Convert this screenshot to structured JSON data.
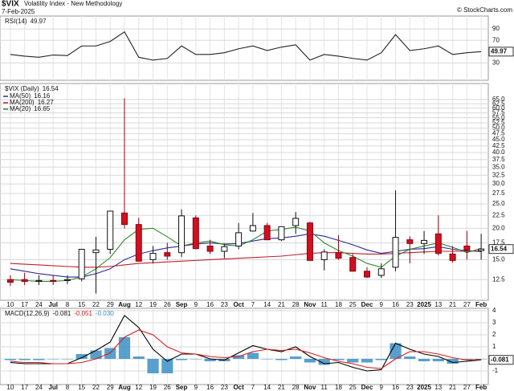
{
  "header": {
    "symbol": "$VIX",
    "title": "Volatility Index - New Methodology",
    "date": "7-Feb-2025",
    "source": "© StockCharts.com"
  },
  "chart_data": [
    {
      "type": "line",
      "name": "RSI(14)",
      "ylim": [
        5,
        110
      ],
      "yticks": [
        30,
        70,
        90
      ],
      "grid": true,
      "series": [
        {
          "name": "RSI(14)",
          "color": "#222222",
          "values": [
            45,
            42,
            40,
            44,
            43,
            60,
            60,
            68,
            85,
            40,
            35,
            38,
            60,
            45,
            45,
            48,
            55,
            60,
            52,
            58,
            62,
            35,
            45,
            42,
            38,
            35,
            48,
            80,
            52,
            55,
            60,
            45,
            48,
            49.97
          ]
        }
      ]
    },
    {
      "type": "candlestick",
      "name": "$VIX (Daily)",
      "log_scale": true,
      "grid": true,
      "up_color": "#ffffff",
      "down_color": "#d01020",
      "categories": [
        "10",
        "17",
        "24",
        "Jul",
        "8",
        "15",
        "22",
        "29",
        "Aug",
        "12",
        "19",
        "26",
        "Sep",
        "9",
        "16",
        "23",
        "Oct",
        "7",
        "14",
        "21",
        "28",
        "Nov",
        "11",
        "18",
        "25",
        "Dec",
        "9",
        "16",
        "23",
        "2025",
        "13",
        "21",
        "27",
        "Feb"
      ],
      "open": [
        12.5,
        12.5,
        12.3,
        12.4,
        12.4,
        12.6,
        16,
        16.5,
        23,
        20.7,
        15,
        16,
        16,
        22,
        17,
        16.2,
        17,
        19.5,
        20.5,
        18,
        20.5,
        21,
        15,
        16,
        15.3,
        13.5,
        13,
        14,
        18,
        17.4,
        19,
        15.8,
        17,
        16.3
      ],
      "high": [
        13,
        13.3,
        13,
        13,
        13,
        16.5,
        18.5,
        23.4,
        65.7,
        22,
        17,
        17.5,
        23.8,
        22.5,
        18,
        17.4,
        21,
        23,
        21,
        20.3,
        23.2,
        21.2,
        16.5,
        18.8,
        15.8,
        14,
        14.5,
        28.3,
        18.6,
        19.5,
        22.5,
        17,
        19.5,
        19
      ],
      "low": [
        11.8,
        11.9,
        11.9,
        11.9,
        12,
        12.3,
        11,
        15.8,
        20,
        14.8,
        14.5,
        15,
        15.4,
        16.5,
        15.8,
        15.2,
        16.5,
        19.4,
        18,
        17.8,
        19,
        14.9,
        13.6,
        15,
        13.5,
        12.7,
        12.7,
        13.5,
        14.5,
        15.8,
        15.6,
        14.6,
        15,
        15
      ],
      "close": [
        12.2,
        12.3,
        12.4,
        12.3,
        12.5,
        16.5,
        16.4,
        23.4,
        20.7,
        14.8,
        15.9,
        15.5,
        22.4,
        16.6,
        16.2,
        16.9,
        19.2,
        20.5,
        18,
        20.3,
        21.9,
        14.9,
        16.1,
        15.2,
        13.5,
        12.8,
        13.8,
        18.4,
        17.4,
        17.9,
        15.9,
        14.9,
        16.4,
        16.54
      ],
      "ylim": [
        10.5,
        72
      ],
      "yticks": [
        12.5,
        {
          "value": 15,
          "label": "15.0"
        },
        17.5,
        {
          "value": 20,
          "label": "20.0"
        },
        22.5,
        {
          "value": 25,
          "label": "25.0"
        },
        27.5,
        {
          "value": 30,
          "label": "30.0"
        },
        32.5,
        {
          "value": 35,
          "label": "35.0"
        },
        37.5,
        {
          "value": 40,
          "label": "40.0"
        },
        42.5,
        {
          "value": 45,
          "label": "45.0"
        },
        47.5,
        {
          "value": 50,
          "label": "50.0"
        },
        52.5,
        {
          "value": 55,
          "label": "55.0"
        },
        57.5,
        {
          "value": 60,
          "label": "60.0"
        },
        62.5,
        {
          "value": 65,
          "label": "65.0"
        }
      ],
      "series": [
        {
          "name": "MA(50)",
          "color": "#2a2a9a",
          "values": [
            13.8,
            13.5,
            13.2,
            13,
            12.8,
            12.8,
            13.2,
            13.8,
            15,
            15.8,
            16.3,
            16.7,
            17,
            17.3,
            17.5,
            17.3,
            17.4,
            17.8,
            18.2,
            18.3,
            18.6,
            19,
            18.6,
            17.9,
            17.2,
            16.4,
            15.9,
            16.2,
            16.5,
            16.6,
            16.9,
            16.5,
            16.3,
            16.16
          ]
        },
        {
          "name": "MA(200)",
          "color": "#c0202a",
          "values": [
            14.5,
            14.4,
            14.3,
            14.2,
            14.1,
            14,
            14,
            14.1,
            14.3,
            14.5,
            14.6,
            14.7,
            14.8,
            14.9,
            15,
            15.1,
            15.2,
            15.3,
            15.4,
            15.5,
            15.7,
            15.9,
            16,
            16,
            15.9,
            15.8,
            15.8,
            15.9,
            16,
            16.1,
            16.2,
            16.2,
            16.2,
            16.27
          ]
        },
        {
          "name": "MA(20)",
          "color": "#2e8b2e",
          "values": [
            12.5,
            12.4,
            12.3,
            12.3,
            12.4,
            12.8,
            13.8,
            15.3,
            18,
            19.8,
            20,
            18.5,
            17,
            17.5,
            17.8,
            17.2,
            17,
            18,
            19.5,
            19.8,
            20.2,
            19.5,
            17.5,
            16.3,
            15.5,
            14.5,
            14,
            15.5,
            16.5,
            17,
            17.5,
            16.8,
            16,
            16.65
          ]
        }
      ]
    },
    {
      "type": "line",
      "name": "MACD(12,26,9)",
      "ylim": [
        -2,
        4
      ],
      "yticks": [
        -1,
        0,
        1,
        2,
        3,
        4
      ],
      "grid": true,
      "series": [
        {
          "color": "#000000",
          "values": [
            -0.3,
            -0.4,
            -0.4,
            -0.4,
            -0.4,
            0.1,
            0.7,
            1.4,
            3.6,
            2.6,
            0.8,
            -0.2,
            0.4,
            0.4,
            0,
            -0.1,
            0.5,
            1.1,
            0.8,
            0.6,
            1,
            0.2,
            -0.4,
            -0.3,
            -0.7,
            -1,
            -0.9,
            1.3,
            0.8,
            0.4,
            0.2,
            -0.3,
            -0.2,
            -0.081
          ]
        },
        {
          "color": "#d02020",
          "values": [
            -0.2,
            -0.3,
            -0.3,
            -0.4,
            -0.4,
            -0.3,
            0,
            0.5,
            1.8,
            2.4,
            2,
            1,
            0.5,
            0.4,
            0.2,
            0.1,
            0.2,
            0.6,
            0.8,
            0.7,
            0.8,
            0.5,
            0.1,
            -0.2,
            -0.4,
            -0.7,
            -0.8,
            0,
            0.6,
            0.6,
            0.4,
            0.1,
            -0.1,
            -0.051
          ]
        },
        {
          "type": "bar",
          "color": "#3b8fc4",
          "values": [
            -0.1,
            -0.1,
            -0.1,
            0,
            0,
            0.4,
            0.7,
            0.9,
            1.8,
            0.2,
            -1.2,
            -1.2,
            -0.1,
            0,
            -0.2,
            -0.2,
            0.3,
            0.5,
            0,
            -0.1,
            0.2,
            -0.3,
            -0.5,
            -0.1,
            -0.3,
            -0.3,
            -0.1,
            1.3,
            0.2,
            -0.2,
            -0.2,
            -0.4,
            -0.1,
            -0.03
          ],
          "value_labels": [
            null,
            null,
            null,
            null,
            null,
            null,
            null,
            null,
            null,
            null,
            null,
            null,
            null,
            null,
            null,
            null,
            null,
            null,
            null,
            null,
            null,
            null,
            null,
            null,
            null,
            null,
            null,
            null,
            null,
            null,
            null,
            null,
            null,
            "-0.030"
          ]
        }
      ]
    }
  ]
}
